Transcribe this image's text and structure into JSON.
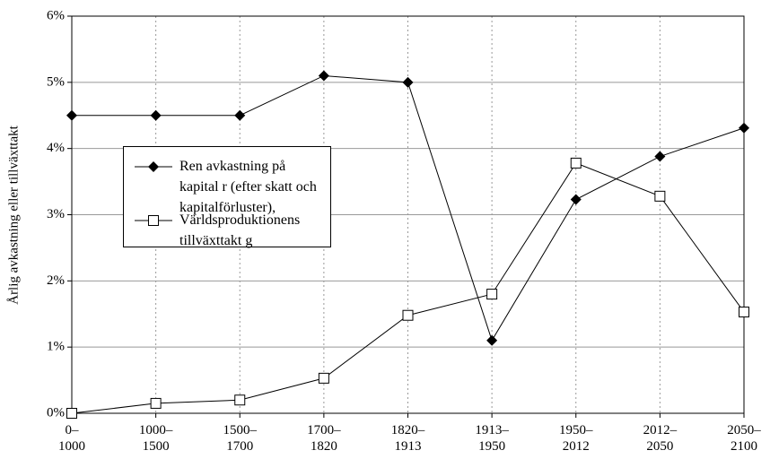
{
  "chart_data": {
    "type": "line",
    "y_label": "Årlig avkastning eller tillväxttakt",
    "categories": [
      "0–1000",
      "1000–1500",
      "1500–1700",
      "1700–1820",
      "1820–1913",
      "1913–1950",
      "1950–2012",
      "2012–2050",
      "2050–2100"
    ],
    "series": [
      {
        "name": "Ren avkastning på kapital r (efter skatt och kapitalförluster),",
        "color": "#000000",
        "marker": "diamond",
        "values": [
          4.5,
          4.5,
          4.5,
          5.1,
          5.0,
          1.1,
          3.23,
          3.88,
          4.31
        ]
      },
      {
        "name": "Världsproduktionens tillväxttakt g",
        "color": "#000000",
        "marker": "square",
        "values": [
          0,
          0.15,
          0.2,
          0.53,
          1.48,
          1.8,
          3.78,
          3.28,
          1.53
        ]
      }
    ],
    "ylim": [
      0,
      6
    ],
    "yticks": [
      {
        "value": 0,
        "label": "0%"
      },
      {
        "value": 1,
        "label": "1%"
      },
      {
        "value": 2,
        "label": "2%"
      },
      {
        "value": 3,
        "label": "3%"
      },
      {
        "value": 4,
        "label": "4%"
      },
      {
        "value": 5,
        "label": "5%"
      },
      {
        "value": 6,
        "label": "6%"
      }
    ],
    "grid": true
  }
}
